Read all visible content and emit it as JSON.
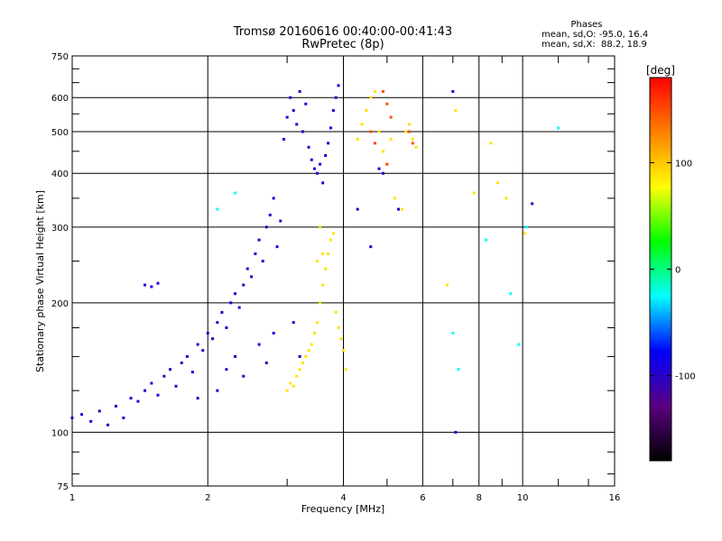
{
  "chart_data": {
    "type": "scatter",
    "title": "Tromsø 20160616 00:40:00-00:41:43",
    "subtitle": "RwPretec (8p)",
    "xlabel": "Frequency [MHz]",
    "ylabel": "Stationary phase Virtual Height [km]",
    "x_scale": "log",
    "y_scale": "log",
    "xlim": [
      1,
      16
    ],
    "ylim": [
      75,
      750
    ],
    "x_ticks": [
      1,
      2,
      4,
      6,
      8,
      10,
      16
    ],
    "x_tick_labels": [
      "1",
      "2",
      "4",
      "6",
      "8",
      "10",
      "16"
    ],
    "y_ticks": [
      75,
      100,
      200,
      300,
      400,
      500,
      600,
      750
    ],
    "y_tick_labels": [
      "75",
      "100",
      "200",
      "300",
      "400",
      "500",
      "600",
      "750"
    ],
    "grid": true,
    "phase_stats": {
      "heading": "Phases",
      "o_line": "mean, sd,O: -95.0, 16.4",
      "x_line": "mean, sd,X:  88.2, 18.9"
    },
    "colorbar": {
      "label": "[deg]",
      "ticks": [
        100,
        0,
        -100
      ],
      "tick_labels": [
        "100",
        "0",
        "-100"
      ],
      "range": [
        -180,
        180
      ],
      "colors": [
        "#000000",
        "#5a0080",
        "#0000ff",
        "#00ffff",
        "#00ff00",
        "#ffff00",
        "#ff8000",
        "#ff0000"
      ]
    },
    "series": [
      {
        "phase_deg": -95,
        "points": [
          [
            1.0,
            108
          ],
          [
            1.05,
            110
          ],
          [
            1.1,
            106
          ],
          [
            1.15,
            112
          ],
          [
            1.2,
            104
          ],
          [
            1.25,
            115
          ],
          [
            1.3,
            108
          ],
          [
            1.35,
            120
          ],
          [
            1.4,
            118
          ],
          [
            1.45,
            125
          ],
          [
            1.5,
            130
          ],
          [
            1.55,
            122
          ],
          [
            1.6,
            135
          ],
          [
            1.65,
            140
          ],
          [
            1.7,
            128
          ],
          [
            1.75,
            145
          ],
          [
            1.8,
            150
          ],
          [
            1.85,
            138
          ],
          [
            1.9,
            160
          ],
          [
            1.95,
            155
          ],
          [
            2.0,
            170
          ],
          [
            2.05,
            165
          ],
          [
            2.1,
            180
          ],
          [
            2.15,
            190
          ],
          [
            2.2,
            175
          ],
          [
            2.25,
            200
          ],
          [
            2.3,
            210
          ],
          [
            2.35,
            195
          ],
          [
            2.4,
            220
          ],
          [
            2.45,
            240
          ],
          [
            2.5,
            230
          ],
          [
            2.55,
            260
          ],
          [
            2.6,
            280
          ],
          [
            2.65,
            250
          ],
          [
            2.7,
            300
          ],
          [
            2.75,
            320
          ],
          [
            2.8,
            350
          ],
          [
            2.85,
            270
          ],
          [
            2.9,
            310
          ],
          [
            2.95,
            480
          ],
          [
            3.0,
            540
          ],
          [
            3.05,
            600
          ],
          [
            3.1,
            560
          ],
          [
            3.15,
            520
          ],
          [
            3.2,
            620
          ],
          [
            3.25,
            500
          ],
          [
            3.3,
            580
          ],
          [
            3.35,
            460
          ],
          [
            3.4,
            430
          ],
          [
            3.45,
            410
          ],
          [
            3.5,
            400
          ],
          [
            3.55,
            420
          ],
          [
            3.6,
            380
          ],
          [
            3.65,
            440
          ],
          [
            3.7,
            470
          ],
          [
            3.75,
            510
          ],
          [
            3.8,
            560
          ],
          [
            3.85,
            600
          ],
          [
            3.9,
            640
          ],
          [
            1.45,
            220
          ],
          [
            1.5,
            218
          ],
          [
            1.55,
            222
          ],
          [
            2.2,
            140
          ],
          [
            2.3,
            150
          ],
          [
            2.4,
            135
          ],
          [
            2.6,
            160
          ],
          [
            2.7,
            145
          ],
          [
            2.8,
            170
          ],
          [
            3.1,
            180
          ],
          [
            3.2,
            150
          ],
          [
            4.3,
            330
          ],
          [
            4.6,
            270
          ],
          [
            5.3,
            330
          ],
          [
            7.0,
            620
          ],
          [
            7.1,
            100
          ],
          [
            10.5,
            340
          ],
          [
            4.8,
            410
          ],
          [
            4.9,
            400
          ],
          [
            2.1,
            125
          ],
          [
            1.9,
            120
          ]
        ]
      },
      {
        "phase_deg": 88,
        "points": [
          [
            3.0,
            125
          ],
          [
            3.05,
            130
          ],
          [
            3.1,
            128
          ],
          [
            3.15,
            135
          ],
          [
            3.2,
            140
          ],
          [
            3.25,
            145
          ],
          [
            3.3,
            150
          ],
          [
            3.35,
            155
          ],
          [
            3.4,
            160
          ],
          [
            3.45,
            170
          ],
          [
            3.5,
            180
          ],
          [
            3.55,
            200
          ],
          [
            3.6,
            220
          ],
          [
            3.65,
            240
          ],
          [
            3.7,
            260
          ],
          [
            3.75,
            280
          ],
          [
            3.8,
            290
          ],
          [
            3.85,
            190
          ],
          [
            3.9,
            175
          ],
          [
            3.95,
            165
          ],
          [
            4.0,
            155
          ],
          [
            4.05,
            140
          ],
          [
            3.5,
            250
          ],
          [
            3.55,
            300
          ],
          [
            3.6,
            260
          ],
          [
            4.3,
            480
          ],
          [
            4.4,
            520
          ],
          [
            4.5,
            560
          ],
          [
            4.6,
            600
          ],
          [
            4.7,
            620
          ],
          [
            4.8,
            500
          ],
          [
            4.9,
            450
          ],
          [
            5.0,
            420
          ],
          [
            5.1,
            480
          ],
          [
            5.5,
            500
          ],
          [
            5.6,
            520
          ],
          [
            5.7,
            480
          ],
          [
            5.8,
            460
          ],
          [
            5.2,
            350
          ],
          [
            5.4,
            330
          ],
          [
            6.8,
            220
          ],
          [
            7.1,
            560
          ],
          [
            7.8,
            360
          ],
          [
            8.5,
            470
          ],
          [
            9.2,
            350
          ],
          [
            10.1,
            290
          ],
          [
            8.8,
            380
          ]
        ]
      },
      {
        "phase_deg": 150,
        "points": [
          [
            4.9,
            620
          ],
          [
            5.0,
            580
          ],
          [
            5.1,
            540
          ],
          [
            5.6,
            500
          ],
          [
            5.7,
            470
          ],
          [
            4.7,
            470
          ],
          [
            4.6,
            500
          ],
          [
            5.0,
            420
          ]
        ]
      },
      {
        "phase_deg": -25,
        "points": [
          [
            7.0,
            170
          ],
          [
            8.3,
            280
          ],
          [
            9.4,
            210
          ],
          [
            10.2,
            300
          ],
          [
            12.0,
            510
          ],
          [
            7.2,
            140
          ],
          [
            9.8,
            160
          ],
          [
            2.3,
            360
          ],
          [
            2.1,
            330
          ]
        ]
      }
    ]
  }
}
